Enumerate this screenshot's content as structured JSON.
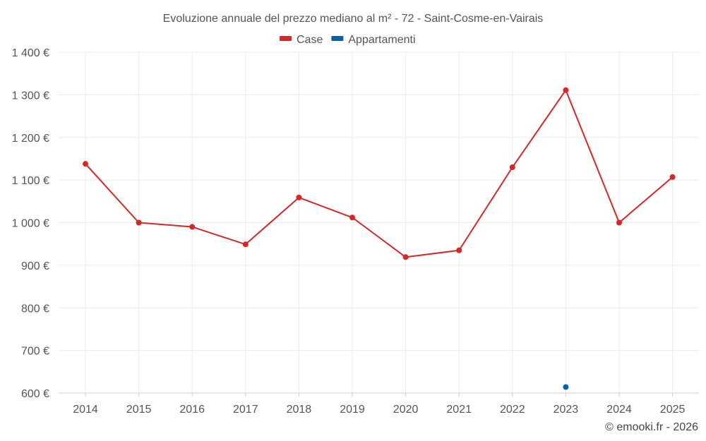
{
  "chart_data": {
    "type": "line",
    "title": "Evoluzione annuale del prezzo mediano al m² - 72 - Saint-Cosme-en-Vairais",
    "categories": [
      "2014",
      "2015",
      "2016",
      "2017",
      "2018",
      "2019",
      "2020",
      "2021",
      "2022",
      "2023",
      "2024",
      "2025"
    ],
    "ylim": [
      600,
      1400
    ],
    "yticks": [
      {
        "value": 600,
        "label": "600 €"
      },
      {
        "value": 700,
        "label": "700 €"
      },
      {
        "value": 800,
        "label": "800 €"
      },
      {
        "value": 900,
        "label": "900 €"
      },
      {
        "value": 1000,
        "label": "1 000 €"
      },
      {
        "value": 1100,
        "label": "1 100 €"
      },
      {
        "value": 1200,
        "label": "1 200 €"
      },
      {
        "value": 1300,
        "label": "1 300 €"
      },
      {
        "value": 1400,
        "label": "1 400 €"
      }
    ],
    "legend_position": "top-center",
    "grid": true,
    "series": [
      {
        "name": "Case",
        "color": "#d62728",
        "values": [
          1138,
          1000,
          990,
          949,
          1059,
          1012,
          919,
          935,
          1130,
          1311,
          1000,
          1107
        ]
      },
      {
        "name": "Appartamenti",
        "color": "#0b5fa5",
        "values": [
          null,
          null,
          null,
          null,
          null,
          null,
          null,
          null,
          null,
          614,
          null,
          null
        ]
      }
    ]
  },
  "credit": "© emooki.fr - 2026"
}
